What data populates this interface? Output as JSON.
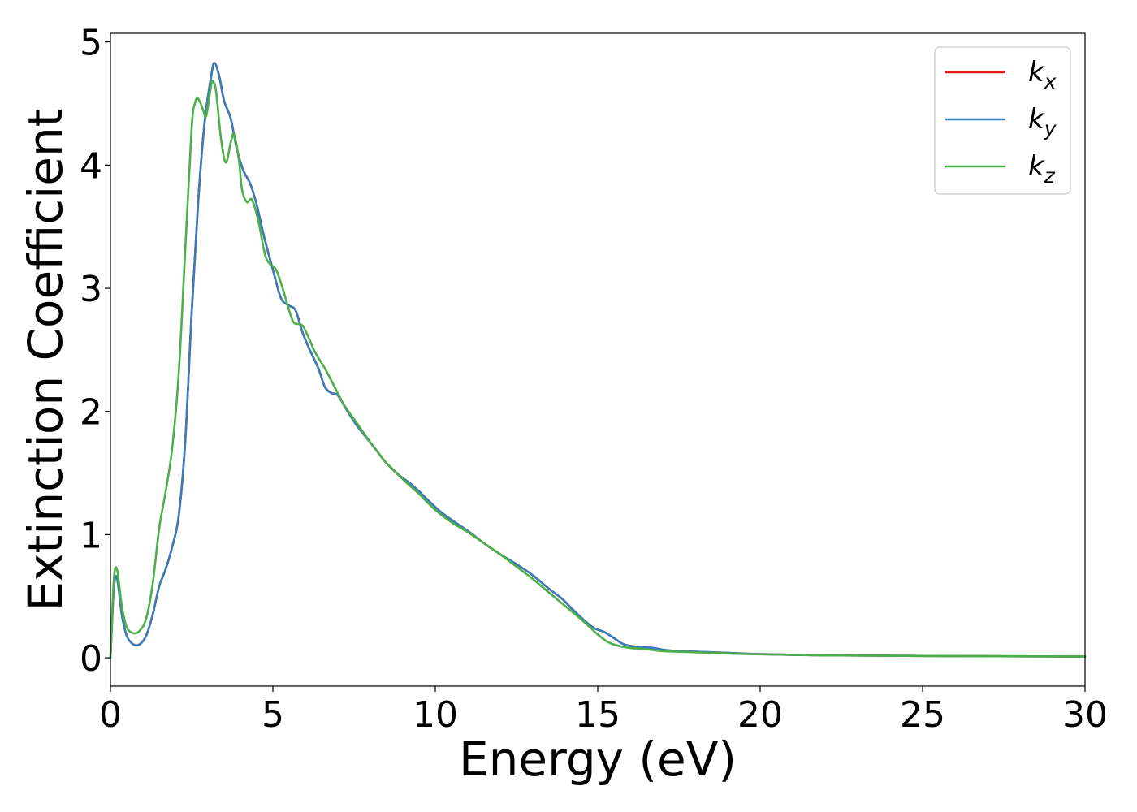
{
  "chart_data": {
    "type": "line",
    "xlabel": "Energy (eV)",
    "ylabel": "Extinction Coefficient",
    "xlim": [
      0,
      30
    ],
    "ylim": [
      -0.23,
      5.07
    ],
    "xticks": [
      {
        "value": 0,
        "label": "0"
      },
      {
        "value": 5,
        "label": "5"
      },
      {
        "value": 10,
        "label": "10"
      },
      {
        "value": 15,
        "label": "15"
      },
      {
        "value": 20,
        "label": "20"
      },
      {
        "value": 25,
        "label": "25"
      },
      {
        "value": 30,
        "label": "30"
      }
    ],
    "yticks": [
      {
        "value": 0,
        "label": "0"
      },
      {
        "value": 1,
        "label": "1"
      },
      {
        "value": 2,
        "label": "2"
      },
      {
        "value": 3,
        "label": "3"
      },
      {
        "value": 4,
        "label": "4"
      },
      {
        "value": 5,
        "label": "5"
      }
    ],
    "grid": false,
    "legend_position": "top-right",
    "series": [
      {
        "name": "k",
        "subscript": "x",
        "color": "#e41a1c",
        "points": [
          [
            0,
            0
          ],
          [
            0.1,
            0.55
          ],
          [
            0.2,
            0.65
          ],
          [
            0.35,
            0.35
          ],
          [
            0.5,
            0.18
          ],
          [
            0.7,
            0.11
          ],
          [
            0.9,
            0.11
          ],
          [
            1.1,
            0.18
          ],
          [
            1.3,
            0.35
          ],
          [
            1.5,
            0.58
          ],
          [
            1.7,
            0.72
          ],
          [
            1.9,
            0.9
          ],
          [
            2.1,
            1.15
          ],
          [
            2.3,
            1.75
          ],
          [
            2.5,
            2.8
          ],
          [
            2.7,
            3.7
          ],
          [
            2.9,
            4.35
          ],
          [
            3.1,
            4.72
          ],
          [
            3.2,
            4.83
          ],
          [
            3.35,
            4.72
          ],
          [
            3.5,
            4.52
          ],
          [
            3.7,
            4.38
          ],
          [
            3.9,
            4.12
          ],
          [
            4.1,
            3.95
          ],
          [
            4.3,
            3.85
          ],
          [
            4.5,
            3.68
          ],
          [
            4.7,
            3.45
          ],
          [
            5.0,
            3.15
          ],
          [
            5.25,
            2.92
          ],
          [
            5.5,
            2.86
          ],
          [
            5.7,
            2.82
          ],
          [
            5.9,
            2.65
          ],
          [
            6.1,
            2.52
          ],
          [
            6.4,
            2.35
          ],
          [
            6.6,
            2.2
          ],
          [
            6.8,
            2.15
          ],
          [
            7.0,
            2.13
          ],
          [
            7.3,
            2.0
          ],
          [
            7.6,
            1.88
          ],
          [
            7.9,
            1.78
          ],
          [
            8.2,
            1.68
          ],
          [
            8.5,
            1.58
          ],
          [
            8.9,
            1.48
          ],
          [
            9.3,
            1.4
          ],
          [
            9.7,
            1.3
          ],
          [
            10.1,
            1.2
          ],
          [
            10.5,
            1.12
          ],
          [
            11.0,
            1.03
          ],
          [
            11.5,
            0.93
          ],
          [
            12.0,
            0.84
          ],
          [
            12.5,
            0.76
          ],
          [
            13.0,
            0.67
          ],
          [
            13.5,
            0.56
          ],
          [
            13.9,
            0.48
          ],
          [
            14.2,
            0.4
          ],
          [
            14.6,
            0.3
          ],
          [
            14.9,
            0.24
          ],
          [
            15.2,
            0.21
          ],
          [
            15.5,
            0.16
          ],
          [
            15.8,
            0.11
          ],
          [
            16.2,
            0.09
          ],
          [
            16.7,
            0.08
          ],
          [
            17.2,
            0.06
          ],
          [
            18.0,
            0.05
          ],
          [
            19.0,
            0.04
          ],
          [
            20.0,
            0.03
          ],
          [
            22.0,
            0.02
          ],
          [
            25.0,
            0.015
          ],
          [
            30.0,
            0.01
          ]
        ]
      },
      {
        "name": "k",
        "subscript": "y",
        "color": "#377eb8",
        "points": [
          [
            0,
            0
          ],
          [
            0.1,
            0.55
          ],
          [
            0.2,
            0.65
          ],
          [
            0.35,
            0.35
          ],
          [
            0.5,
            0.18
          ],
          [
            0.7,
            0.11
          ],
          [
            0.9,
            0.11
          ],
          [
            1.1,
            0.18
          ],
          [
            1.3,
            0.35
          ],
          [
            1.5,
            0.58
          ],
          [
            1.7,
            0.72
          ],
          [
            1.9,
            0.9
          ],
          [
            2.1,
            1.15
          ],
          [
            2.3,
            1.75
          ],
          [
            2.5,
            2.8
          ],
          [
            2.7,
            3.7
          ],
          [
            2.9,
            4.35
          ],
          [
            3.1,
            4.72
          ],
          [
            3.2,
            4.83
          ],
          [
            3.35,
            4.72
          ],
          [
            3.5,
            4.52
          ],
          [
            3.7,
            4.38
          ],
          [
            3.9,
            4.12
          ],
          [
            4.1,
            3.95
          ],
          [
            4.3,
            3.85
          ],
          [
            4.5,
            3.68
          ],
          [
            4.7,
            3.45
          ],
          [
            5.0,
            3.15
          ],
          [
            5.25,
            2.92
          ],
          [
            5.5,
            2.86
          ],
          [
            5.7,
            2.82
          ],
          [
            5.9,
            2.65
          ],
          [
            6.1,
            2.52
          ],
          [
            6.4,
            2.35
          ],
          [
            6.6,
            2.2
          ],
          [
            6.8,
            2.15
          ],
          [
            7.0,
            2.13
          ],
          [
            7.3,
            2.0
          ],
          [
            7.6,
            1.88
          ],
          [
            7.9,
            1.78
          ],
          [
            8.2,
            1.68
          ],
          [
            8.5,
            1.58
          ],
          [
            8.9,
            1.48
          ],
          [
            9.3,
            1.4
          ],
          [
            9.7,
            1.3
          ],
          [
            10.1,
            1.2
          ],
          [
            10.5,
            1.12
          ],
          [
            11.0,
            1.03
          ],
          [
            11.5,
            0.93
          ],
          [
            12.0,
            0.84
          ],
          [
            12.5,
            0.76
          ],
          [
            13.0,
            0.67
          ],
          [
            13.5,
            0.56
          ],
          [
            13.9,
            0.48
          ],
          [
            14.2,
            0.4
          ],
          [
            14.6,
            0.3
          ],
          [
            14.9,
            0.24
          ],
          [
            15.2,
            0.21
          ],
          [
            15.5,
            0.16
          ],
          [
            15.8,
            0.11
          ],
          [
            16.2,
            0.09
          ],
          [
            16.7,
            0.08
          ],
          [
            17.2,
            0.06
          ],
          [
            18.0,
            0.05
          ],
          [
            19.0,
            0.04
          ],
          [
            20.0,
            0.03
          ],
          [
            22.0,
            0.02
          ],
          [
            25.0,
            0.015
          ],
          [
            30.0,
            0.01
          ]
        ]
      },
      {
        "name": "k",
        "subscript": "z",
        "color": "#4daf4a",
        "points": [
          [
            0,
            0
          ],
          [
            0.1,
            0.62
          ],
          [
            0.2,
            0.72
          ],
          [
            0.35,
            0.42
          ],
          [
            0.5,
            0.25
          ],
          [
            0.7,
            0.2
          ],
          [
            0.9,
            0.22
          ],
          [
            1.1,
            0.32
          ],
          [
            1.3,
            0.6
          ],
          [
            1.5,
            1.05
          ],
          [
            1.7,
            1.35
          ],
          [
            1.9,
            1.7
          ],
          [
            2.1,
            2.3
          ],
          [
            2.3,
            3.3
          ],
          [
            2.5,
            4.3
          ],
          [
            2.6,
            4.5
          ],
          [
            2.7,
            4.54
          ],
          [
            2.85,
            4.45
          ],
          [
            2.95,
            4.4
          ],
          [
            3.1,
            4.65
          ],
          [
            3.15,
            4.68
          ],
          [
            3.25,
            4.6
          ],
          [
            3.4,
            4.22
          ],
          [
            3.55,
            4.02
          ],
          [
            3.7,
            4.18
          ],
          [
            3.8,
            4.25
          ],
          [
            3.95,
            4.05
          ],
          [
            4.05,
            3.8
          ],
          [
            4.2,
            3.7
          ],
          [
            4.35,
            3.72
          ],
          [
            4.55,
            3.55
          ],
          [
            4.75,
            3.28
          ],
          [
            4.9,
            3.2
          ],
          [
            5.1,
            3.15
          ],
          [
            5.3,
            3.0
          ],
          [
            5.5,
            2.82
          ],
          [
            5.65,
            2.72
          ],
          [
            5.9,
            2.7
          ],
          [
            6.1,
            2.6
          ],
          [
            6.3,
            2.48
          ],
          [
            6.6,
            2.35
          ],
          [
            6.9,
            2.2
          ],
          [
            7.2,
            2.05
          ],
          [
            7.6,
            1.9
          ],
          [
            8.0,
            1.75
          ],
          [
            8.5,
            1.58
          ],
          [
            9.0,
            1.45
          ],
          [
            9.5,
            1.33
          ],
          [
            10.0,
            1.2
          ],
          [
            10.5,
            1.1
          ],
          [
            11.0,
            1.02
          ],
          [
            11.5,
            0.93
          ],
          [
            12.0,
            0.84
          ],
          [
            12.5,
            0.74
          ],
          [
            13.0,
            0.64
          ],
          [
            13.5,
            0.53
          ],
          [
            14.0,
            0.42
          ],
          [
            14.5,
            0.31
          ],
          [
            15.0,
            0.19
          ],
          [
            15.3,
            0.13
          ],
          [
            15.6,
            0.1
          ],
          [
            16.0,
            0.08
          ],
          [
            16.5,
            0.07
          ],
          [
            17.0,
            0.055
          ],
          [
            18.0,
            0.045
          ],
          [
            19.0,
            0.035
          ],
          [
            20.0,
            0.028
          ],
          [
            22.0,
            0.02
          ],
          [
            25.0,
            0.015
          ],
          [
            30.0,
            0.01
          ]
        ]
      }
    ]
  }
}
